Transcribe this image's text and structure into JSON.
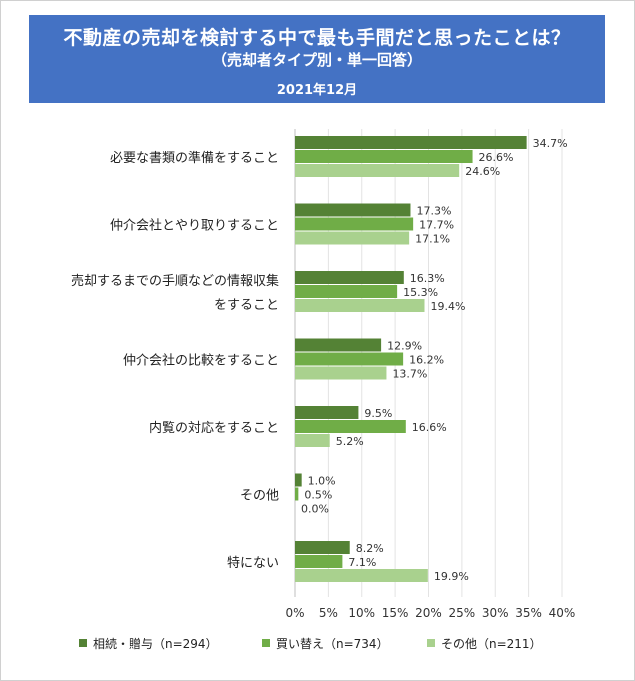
{
  "header": {
    "title": "不動産の売却を検討する中で最も手間だと思ったことは？",
    "subtitle": "（売却者タイプ別・単一回答）",
    "date": "2021年12月"
  },
  "chart_data": {
    "type": "bar",
    "orientation": "horizontal",
    "title": "不動産の売却を検討する中で最も手間だと思ったことは？",
    "subtitle": "（売却者タイプ別・単一回答）",
    "categories": [
      [
        "必要な書類の準備をすること"
      ],
      [
        "仲介会社とやり取りすること"
      ],
      [
        "売却するまでの手順などの情報収集",
        "をすること"
      ],
      [
        "仲介会社の比較をすること"
      ],
      [
        "内覧の対応をすること"
      ],
      [
        "その他"
      ],
      [
        "特にない"
      ]
    ],
    "series": [
      {
        "name": "相続・贈与（n=294）",
        "color": "#548235",
        "values": [
          34.7,
          17.3,
          16.3,
          12.9,
          9.5,
          1.0,
          8.2
        ]
      },
      {
        "name": "買い替え（n=734）",
        "color": "#70ad47",
        "values": [
          26.6,
          17.7,
          15.3,
          16.2,
          16.6,
          0.5,
          7.1
        ]
      },
      {
        "name": "その他（n=211）",
        "color": "#a9d18e",
        "values": [
          24.6,
          17.1,
          19.4,
          13.7,
          5.2,
          0.0,
          19.9
        ]
      }
    ],
    "value_suffix": "%",
    "xlim": [
      0,
      40
    ],
    "xticks": [
      0,
      5,
      10,
      15,
      20,
      25,
      30,
      35,
      40
    ],
    "tick_labels": [
      "0%",
      "5%",
      "10%",
      "15%",
      "20%",
      "25%",
      "30%",
      "35%",
      "40%"
    ],
    "grid": "vertical",
    "legend_position": "bottom",
    "data_labels": true
  }
}
